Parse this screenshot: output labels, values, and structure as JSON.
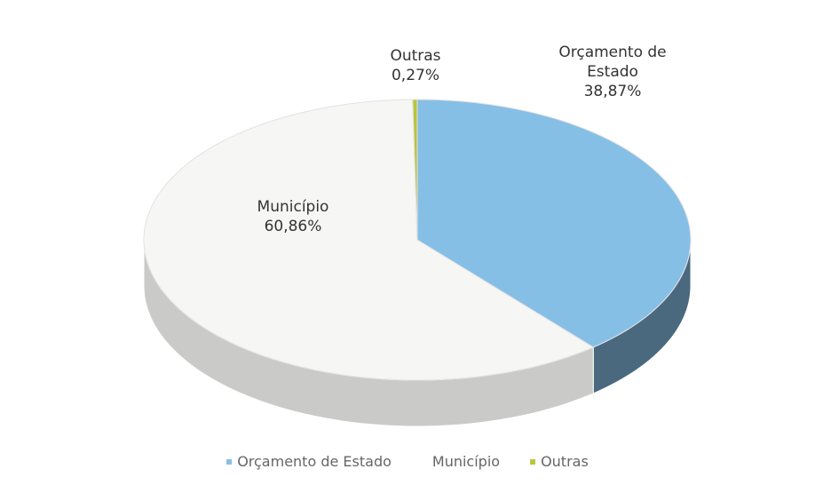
{
  "chart_data": {
    "type": "pie",
    "categories": [
      "Orçamento de Estado",
      "Município",
      "Outras"
    ],
    "values": [
      38.87,
      60.86,
      0.27
    ],
    "value_labels": [
      "38,87%",
      "60,86%",
      "0,27%"
    ],
    "colors": [
      "#86bfe6",
      "#f6f6f4",
      "#b8c63a"
    ],
    "legend": "bottom"
  }
}
